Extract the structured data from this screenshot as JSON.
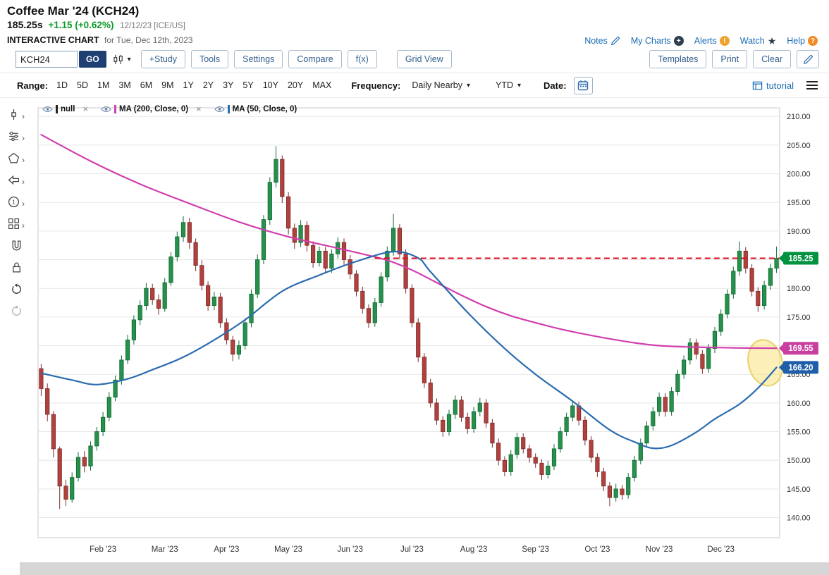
{
  "header": {
    "title": "Coffee Mar '24 (KCH24)",
    "price": "185.25s",
    "change": "+1.15 (+0.62%)",
    "date_source": "12/12/23 [ICE/US]",
    "chart_label": "INTERACTIVE CHART",
    "chart_label_suffix": "for Tue, Dec 12th, 2023",
    "links": [
      {
        "label": "Notes",
        "icon": "notes-icon"
      },
      {
        "label": "My Charts",
        "icon": "plus-circle-icon"
      },
      {
        "label": "Alerts",
        "icon": "alert-circle-icon"
      },
      {
        "label": "Watch",
        "icon": "star-icon"
      },
      {
        "label": "Help",
        "icon": "help-circle-icon"
      }
    ]
  },
  "toolbar": {
    "symbol_input": "KCH24",
    "go_label": "GO",
    "buttons": [
      "+Study",
      "Tools",
      "Settings",
      "Compare",
      "f(x)",
      "Grid View"
    ],
    "right_buttons": [
      "Templates",
      "Print",
      "Clear"
    ]
  },
  "range_bar": {
    "range_label": "Range:",
    "ranges": [
      "1D",
      "5D",
      "1M",
      "3M",
      "6M",
      "9M",
      "1Y",
      "2Y",
      "3Y",
      "5Y",
      "10Y",
      "20Y",
      "MAX"
    ],
    "frequency_label": "Frequency:",
    "frequency_value": "Daily Nearby",
    "period_value": "YTD",
    "date_label": "Date:",
    "tutorial_label": "tutorial"
  },
  "rail": [
    {
      "name": "pointer-tool-icon",
      "submenu": true
    },
    {
      "name": "studies-tool-icon",
      "submenu": true
    },
    {
      "name": "shapes-tool-icon",
      "submenu": true
    },
    {
      "name": "arrow-tool-icon",
      "submenu": true
    },
    {
      "name": "number-tool-icon",
      "submenu": true
    },
    {
      "name": "layout-tool-icon",
      "submenu": true
    },
    {
      "name": "magnet-icon",
      "submenu": false
    },
    {
      "name": "lock-icon",
      "submenu": false
    },
    {
      "name": "undo-icon",
      "submenu": false
    },
    {
      "name": "redo-icon",
      "submenu": false,
      "disabled": true
    }
  ],
  "legend": [
    {
      "label": "null",
      "color": "#222222",
      "closable": true
    },
    {
      "label": "MA (200, Close, 0)",
      "color": "#d13fae",
      "closable": true
    },
    {
      "label": "MA (50, Close, 0)",
      "color": "#2a6cb0",
      "closable": false
    }
  ],
  "axis_badges": [
    {
      "value": "185.25",
      "price": 185.25,
      "color": "#00923f"
    },
    {
      "value": "169.55",
      "price": 169.55,
      "color": "#c93f9f"
    },
    {
      "value": "166.20",
      "price": 166.2,
      "color": "#1f5fa9"
    }
  ],
  "chart_data": {
    "type": "candlestick",
    "title": "Coffee Mar '24 (KCH24) - Daily Nearby - YTD",
    "ylim": [
      136.5,
      211.5
    ],
    "y_ticks": [
      210,
      205,
      200,
      195,
      190,
      185,
      180,
      175,
      170,
      165,
      160,
      155,
      150,
      145,
      140
    ],
    "x_labels": [
      {
        "index": 10,
        "label": "Feb '23"
      },
      {
        "index": 20,
        "label": "Mar '23"
      },
      {
        "index": 30,
        "label": "Apr '23"
      },
      {
        "index": 40,
        "label": "May '23"
      },
      {
        "index": 50,
        "label": "Jun '23"
      },
      {
        "index": 60,
        "label": "Jul '23"
      },
      {
        "index": 70,
        "label": "Aug '23"
      },
      {
        "index": 80,
        "label": "Sep '23"
      },
      {
        "index": 90,
        "label": "Oct '23"
      },
      {
        "index": 100,
        "label": "Nov '23"
      },
      {
        "index": 110,
        "label": "Dec '23"
      }
    ],
    "candle_colors": {
      "up": "#27904c",
      "up_border": "#0e6a31",
      "down": "#b0413e",
      "down_border": "#7c2b28"
    },
    "candles": [
      [
        166.0,
        166.8,
        161.2,
        162.5
      ],
      [
        162.5,
        163.4,
        156.8,
        158.0
      ],
      [
        158.0,
        158.6,
        150.5,
        152.0
      ],
      [
        152.0,
        152.4,
        141.5,
        145.5
      ],
      [
        145.5,
        146.6,
        142.0,
        143.2
      ],
      [
        143.2,
        147.9,
        142.6,
        147.0
      ],
      [
        147.0,
        151.4,
        146.3,
        150.5
      ],
      [
        150.5,
        151.6,
        147.9,
        149.0
      ],
      [
        149.0,
        153.3,
        148.2,
        152.5
      ],
      [
        152.5,
        155.8,
        151.7,
        155.0
      ],
      [
        155.0,
        158.4,
        154.2,
        157.5
      ],
      [
        157.5,
        161.9,
        156.8,
        161.0
      ],
      [
        161.0,
        164.8,
        160.3,
        164.0
      ],
      [
        164.0,
        168.3,
        163.2,
        167.5
      ],
      [
        167.5,
        171.9,
        166.8,
        171.0
      ],
      [
        171.0,
        175.3,
        170.2,
        174.5
      ],
      [
        174.5,
        177.9,
        173.6,
        177.0
      ],
      [
        177.0,
        180.9,
        176.2,
        180.0
      ],
      [
        180.0,
        180.8,
        177.1,
        178.0
      ],
      [
        178.0,
        178.9,
        175.4,
        176.5
      ],
      [
        176.5,
        181.8,
        175.9,
        181.0
      ],
      [
        181.0,
        186.3,
        180.4,
        185.5
      ],
      [
        185.5,
        189.9,
        184.7,
        189.0
      ],
      [
        189.0,
        192.6,
        188.1,
        191.5
      ],
      [
        191.5,
        192.3,
        186.9,
        188.0
      ],
      [
        188.0,
        188.7,
        183.0,
        184.0
      ],
      [
        184.0,
        184.9,
        179.6,
        180.5
      ],
      [
        180.5,
        181.2,
        176.1,
        177.0
      ],
      [
        177.0,
        179.4,
        176.2,
        178.5
      ],
      [
        178.5,
        179.2,
        173.1,
        174.0
      ],
      [
        174.0,
        174.8,
        170.2,
        171.0
      ],
      [
        171.0,
        171.7,
        167.3,
        168.5
      ],
      [
        168.5,
        170.9,
        167.6,
        170.0
      ],
      [
        170.0,
        174.8,
        169.3,
        174.0
      ],
      [
        174.0,
        179.8,
        173.2,
        179.0
      ],
      [
        179.0,
        185.9,
        178.3,
        185.0
      ],
      [
        185.0,
        192.8,
        184.2,
        192.0
      ],
      [
        192.0,
        199.4,
        191.1,
        198.5
      ],
      [
        198.5,
        204.8,
        197.6,
        202.5
      ],
      [
        202.5,
        203.2,
        194.9,
        196.0
      ],
      [
        196.0,
        196.8,
        189.4,
        190.5
      ],
      [
        190.5,
        191.3,
        186.9,
        188.0
      ],
      [
        188.0,
        191.9,
        187.2,
        191.0
      ],
      [
        191.0,
        191.7,
        186.4,
        187.5
      ],
      [
        187.5,
        188.2,
        183.6,
        184.5
      ],
      [
        184.5,
        187.3,
        183.8,
        186.5
      ],
      [
        186.5,
        187.2,
        182.6,
        183.5
      ],
      [
        183.5,
        186.8,
        182.7,
        186.0
      ],
      [
        186.0,
        188.9,
        185.2,
        188.0
      ],
      [
        188.0,
        188.7,
        184.1,
        185.0
      ],
      [
        185.0,
        185.8,
        181.6,
        182.5
      ],
      [
        182.5,
        183.2,
        178.6,
        179.5
      ],
      [
        179.5,
        180.3,
        175.6,
        176.5
      ],
      [
        176.5,
        177.2,
        173.1,
        174.0
      ],
      [
        174.0,
        178.3,
        173.3,
        177.5
      ],
      [
        177.5,
        182.8,
        176.8,
        182.0
      ],
      [
        182.0,
        187.3,
        181.2,
        186.5
      ],
      [
        186.5,
        193.0,
        185.7,
        190.5
      ],
      [
        190.5,
        191.2,
        185.1,
        186.0
      ],
      [
        186.0,
        186.8,
        179.1,
        180.0
      ],
      [
        180.0,
        180.7,
        173.2,
        174.0
      ],
      [
        174.0,
        174.8,
        167.1,
        168.0
      ],
      [
        168.0,
        168.7,
        162.6,
        163.5
      ],
      [
        163.5,
        164.2,
        159.2,
        160.0
      ],
      [
        160.0,
        160.8,
        156.2,
        157.0
      ],
      [
        157.0,
        157.7,
        154.1,
        155.0
      ],
      [
        155.0,
        158.8,
        154.3,
        158.0
      ],
      [
        158.0,
        161.3,
        157.2,
        160.5
      ],
      [
        160.5,
        161.2,
        156.7,
        157.5
      ],
      [
        157.5,
        158.3,
        154.6,
        155.5
      ],
      [
        155.5,
        159.3,
        154.8,
        158.5
      ],
      [
        158.5,
        160.9,
        157.7,
        160.0
      ],
      [
        160.0,
        160.7,
        155.7,
        156.5
      ],
      [
        156.5,
        157.2,
        152.2,
        153.0
      ],
      [
        153.0,
        153.8,
        149.1,
        150.0
      ],
      [
        150.0,
        150.7,
        147.2,
        148.0
      ],
      [
        148.0,
        151.8,
        147.3,
        151.0
      ],
      [
        151.0,
        154.8,
        150.3,
        154.0
      ],
      [
        154.0,
        154.7,
        151.2,
        152.0
      ],
      [
        152.0,
        152.7,
        149.6,
        150.5
      ],
      [
        150.5,
        151.2,
        148.7,
        149.5
      ],
      [
        149.5,
        150.2,
        146.6,
        147.5
      ],
      [
        147.5,
        149.9,
        146.8,
        149.0
      ],
      [
        149.0,
        152.8,
        148.3,
        152.0
      ],
      [
        152.0,
        155.8,
        151.3,
        155.0
      ],
      [
        155.0,
        158.3,
        154.2,
        157.5
      ],
      [
        157.5,
        160.2,
        156.8,
        159.5
      ],
      [
        159.5,
        160.2,
        156.1,
        157.0
      ],
      [
        157.0,
        157.7,
        152.6,
        153.5
      ],
      [
        153.5,
        154.2,
        149.6,
        150.5
      ],
      [
        150.5,
        151.2,
        147.1,
        148.0
      ],
      [
        148.0,
        148.7,
        144.6,
        145.5
      ],
      [
        145.5,
        146.2,
        142.0,
        143.5
      ],
      [
        143.5,
        145.9,
        142.8,
        145.0
      ],
      [
        145.0,
        145.7,
        143.1,
        144.0
      ],
      [
        144.0,
        147.8,
        143.3,
        147.0
      ],
      [
        147.0,
        150.8,
        146.3,
        150.0
      ],
      [
        150.0,
        153.8,
        149.3,
        153.0
      ],
      [
        153.0,
        156.8,
        152.3,
        156.0
      ],
      [
        156.0,
        159.3,
        155.2,
        158.5
      ],
      [
        158.5,
        161.8,
        157.7,
        161.0
      ],
      [
        161.0,
        161.7,
        157.6,
        158.5
      ],
      [
        158.5,
        162.8,
        157.8,
        162.0
      ],
      [
        162.0,
        165.8,
        161.3,
        165.0
      ],
      [
        165.0,
        168.3,
        164.2,
        167.5
      ],
      [
        167.5,
        171.3,
        166.7,
        170.5
      ],
      [
        170.5,
        171.2,
        167.6,
        168.5
      ],
      [
        168.5,
        169.2,
        165.1,
        166.0
      ],
      [
        166.0,
        170.3,
        165.3,
        169.5
      ],
      [
        169.5,
        173.3,
        168.7,
        172.5
      ],
      [
        172.5,
        176.3,
        171.7,
        175.5
      ],
      [
        175.5,
        179.8,
        174.8,
        179.0
      ],
      [
        179.0,
        183.8,
        178.2,
        183.0
      ],
      [
        183.0,
        188.2,
        182.2,
        186.5
      ],
      [
        186.5,
        187.2,
        182.6,
        183.5
      ],
      [
        183.5,
        184.2,
        178.6,
        179.5
      ],
      [
        179.5,
        180.2,
        175.9,
        177.0
      ],
      [
        177.0,
        181.3,
        176.3,
        180.5
      ],
      [
        180.5,
        184.3,
        179.7,
        183.5
      ],
      [
        183.5,
        187.3,
        182.7,
        185.25
      ]
    ],
    "overlays": [
      {
        "name": "MA (200, Close, 0)",
        "color": "#d13fae",
        "points": [
          [
            0,
            206.8
          ],
          [
            8,
            202.2
          ],
          [
            16,
            198.2
          ],
          [
            24,
            194.8
          ],
          [
            32,
            191.6
          ],
          [
            40,
            189.0
          ],
          [
            48,
            187.0
          ],
          [
            52,
            186.0
          ],
          [
            56,
            184.9
          ],
          [
            60,
            183.2
          ],
          [
            64,
            181.0
          ],
          [
            68,
            178.8
          ],
          [
            72,
            176.8
          ],
          [
            76,
            175.2
          ],
          [
            80,
            174.0
          ],
          [
            84,
            172.9
          ],
          [
            88,
            172.0
          ],
          [
            92,
            171.2
          ],
          [
            96,
            170.5
          ],
          [
            100,
            170.0
          ],
          [
            104,
            169.8
          ],
          [
            108,
            169.7
          ],
          [
            113,
            169.6
          ],
          [
            119,
            169.55
          ]
        ]
      },
      {
        "name": "MA (50, Close, 0)",
        "color": "#2a6cb0",
        "points": [
          [
            0,
            165.2
          ],
          [
            5,
            164.0
          ],
          [
            9,
            163.2
          ],
          [
            14,
            164.2
          ],
          [
            18,
            165.8
          ],
          [
            23,
            168.0
          ],
          [
            28,
            171.0
          ],
          [
            33,
            174.5
          ],
          [
            39,
            179.5
          ],
          [
            45,
            182.3
          ],
          [
            51,
            184.7
          ],
          [
            57,
            186.4
          ],
          [
            61,
            185.3
          ],
          [
            63,
            182.9
          ],
          [
            69,
            175.8
          ],
          [
            75,
            169.5
          ],
          [
            80,
            165.0
          ],
          [
            86,
            160.3
          ],
          [
            92,
            155.3
          ],
          [
            96,
            153.2
          ],
          [
            99,
            152.1
          ],
          [
            102,
            152.6
          ],
          [
            106,
            154.9
          ],
          [
            109,
            157.2
          ],
          [
            113,
            159.8
          ],
          [
            116,
            162.6
          ],
          [
            119,
            166.2
          ]
        ]
      }
    ],
    "last_price_line": {
      "value": 185.25,
      "start_index": 54,
      "color": "#dc0a1e"
    },
    "highlight": {
      "index": 117.2,
      "price": 167.0,
      "rx": 24,
      "ry": 33,
      "rotate": -14,
      "fill": "#f9e27d",
      "fill_opacity": 0.55,
      "stroke": "#e6cd5e"
    }
  }
}
